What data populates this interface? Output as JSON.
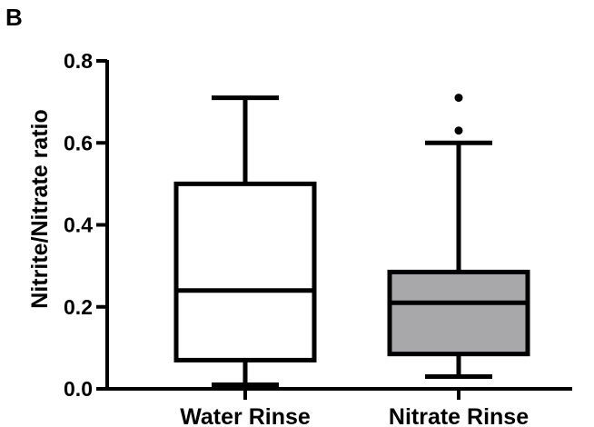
{
  "panel_label": "B",
  "chart_data": {
    "type": "box",
    "categories": [
      "Water Rinse",
      "Nitrate Rinse"
    ],
    "ylabel": "Nitrite/Nitrate ratio",
    "xlabel": "",
    "ylim": [
      0,
      0.8
    ],
    "yticks": [
      "0.0",
      "0.2",
      "0.4",
      "0.6",
      "0.8"
    ],
    "ytick_values": [
      0.0,
      0.2,
      0.4,
      0.6,
      0.8
    ],
    "boxes": [
      {
        "name": "Water Rinse",
        "whisker_low": 0.01,
        "q1": 0.07,
        "median": 0.24,
        "q3": 0.5,
        "whisker_high": 0.71,
        "outliers": [],
        "fill": "#ffffff"
      },
      {
        "name": "Nitrate Rinse",
        "whisker_low": 0.03,
        "q1": 0.085,
        "median": 0.21,
        "q3": 0.285,
        "whisker_high": 0.6,
        "outliers": [
          0.63,
          0.71
        ],
        "fill": "#a8a7aa"
      }
    ],
    "grid": false,
    "legend": "none"
  }
}
